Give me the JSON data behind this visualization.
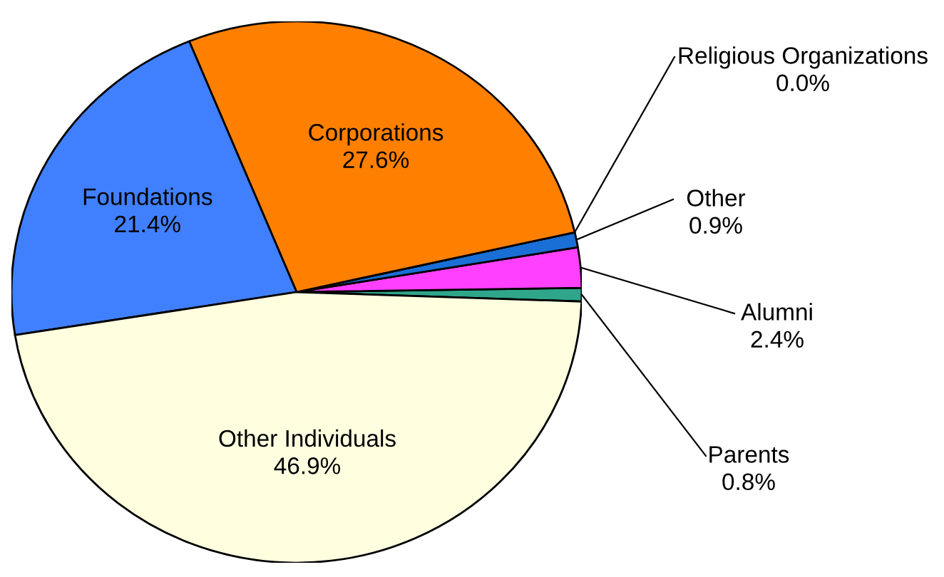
{
  "chart_data": {
    "type": "pie",
    "categories": [
      "Parents",
      "Alumni",
      "Other",
      "Religious Organizations",
      "Corporations",
      "Foundations",
      "Other Individuals"
    ],
    "values": [
      0.8,
      2.4,
      0.9,
      0.0,
      27.6,
      21.4,
      46.9
    ],
    "value_labels": [
      "0.8%",
      "2.4%",
      "0.9%",
      "0.0%",
      "27.6%",
      "21.4%",
      "46.9%"
    ],
    "colors": [
      "#2fa58a",
      "#ff40ff",
      "#1a6fd6",
      "#7a3fb0",
      "#ff8000",
      "#4080ff",
      "#ffffe0"
    ],
    "legend": false
  }
}
